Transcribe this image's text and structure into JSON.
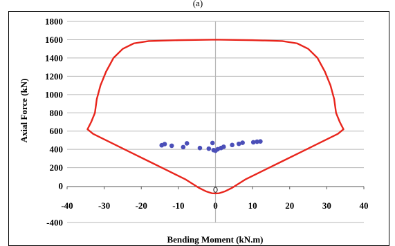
{
  "figure": {
    "panel_label": "(a)"
  },
  "chart_data": {
    "type": "scatter",
    "xlabel": "Bending Moment (kN.m)",
    "ylabel": "Axial Force (kN)",
    "xlim": [
      -40,
      40
    ],
    "ylim": [
      -400,
      1800
    ],
    "x_ticks": [
      -40,
      -30,
      -20,
      -10,
      0,
      10,
      20,
      30,
      40
    ],
    "y_ticks": [
      -400,
      0,
      200,
      400,
      600,
      800,
      1000,
      1200,
      1400,
      1600,
      1800
    ],
    "x_tick_labels": [
      "-40",
      "-30",
      "-20",
      "-10",
      "0",
      "10",
      "20",
      "30",
      "40"
    ],
    "y_tick_labels": [
      "-400",
      "0",
      "200",
      "400",
      "600",
      "800",
      "1000",
      "1200",
      "1400",
      "1600",
      "1800"
    ],
    "grid": "horizontal",
    "colors": {
      "envelope": "#e8251c",
      "points": "#4b4fb8",
      "grid": "#b7b7b7",
      "frame": "#000000"
    },
    "series": [
      {
        "kind": "envelope-line",
        "points": [
          [
            -1,
            1600
          ],
          [
            -10,
            1595
          ],
          [
            -18,
            1585
          ],
          [
            -22,
            1560
          ],
          [
            -25,
            1500
          ],
          [
            -27.5,
            1400
          ],
          [
            -29.5,
            1250
          ],
          [
            -31,
            1100
          ],
          [
            -32,
            950
          ],
          [
            -32.5,
            800
          ],
          [
            -33.5,
            700
          ],
          [
            -34.5,
            620
          ],
          [
            -33,
            570
          ],
          [
            -28,
            470
          ],
          [
            -23,
            370
          ],
          [
            -18,
            270
          ],
          [
            -13,
            170
          ],
          [
            -8,
            70
          ],
          [
            -4.5,
            -20
          ],
          [
            -2.5,
            -60
          ],
          [
            -1,
            -80
          ],
          [
            0,
            -82
          ],
          [
            1,
            -80
          ],
          [
            2.5,
            -60
          ],
          [
            4.5,
            -20
          ],
          [
            8,
            70
          ],
          [
            13,
            170
          ],
          [
            18,
            270
          ],
          [
            23,
            370
          ],
          [
            28,
            470
          ],
          [
            33,
            570
          ],
          [
            34.5,
            620
          ],
          [
            33.5,
            700
          ],
          [
            32.5,
            800
          ],
          [
            32,
            950
          ],
          [
            31,
            1100
          ],
          [
            29.5,
            1250
          ],
          [
            27.5,
            1400
          ],
          [
            25,
            1500
          ],
          [
            22,
            1560
          ],
          [
            18,
            1585
          ],
          [
            10,
            1595
          ],
          [
            1,
            1600
          ],
          [
            -1,
            1600
          ]
        ]
      },
      {
        "kind": "scatter",
        "points": [
          [
            -14.5,
            445
          ],
          [
            -13.7,
            458
          ],
          [
            -11.8,
            440
          ],
          [
            -8.7,
            425
          ],
          [
            -7.7,
            466
          ],
          [
            -4.2,
            415
          ],
          [
            -1.8,
            408
          ],
          [
            -0.8,
            470
          ],
          [
            -0.5,
            392
          ],
          [
            0,
            386
          ],
          [
            0.6,
            402
          ],
          [
            1.5,
            415
          ],
          [
            2.2,
            428
          ],
          [
            4.5,
            448
          ],
          [
            6.3,
            461
          ],
          [
            7.3,
            473
          ],
          [
            10.2,
            478
          ],
          [
            11.2,
            484
          ],
          [
            12.1,
            487
          ]
        ]
      },
      {
        "kind": "open-marker",
        "points": [
          [
            0,
            -42
          ]
        ]
      }
    ]
  }
}
